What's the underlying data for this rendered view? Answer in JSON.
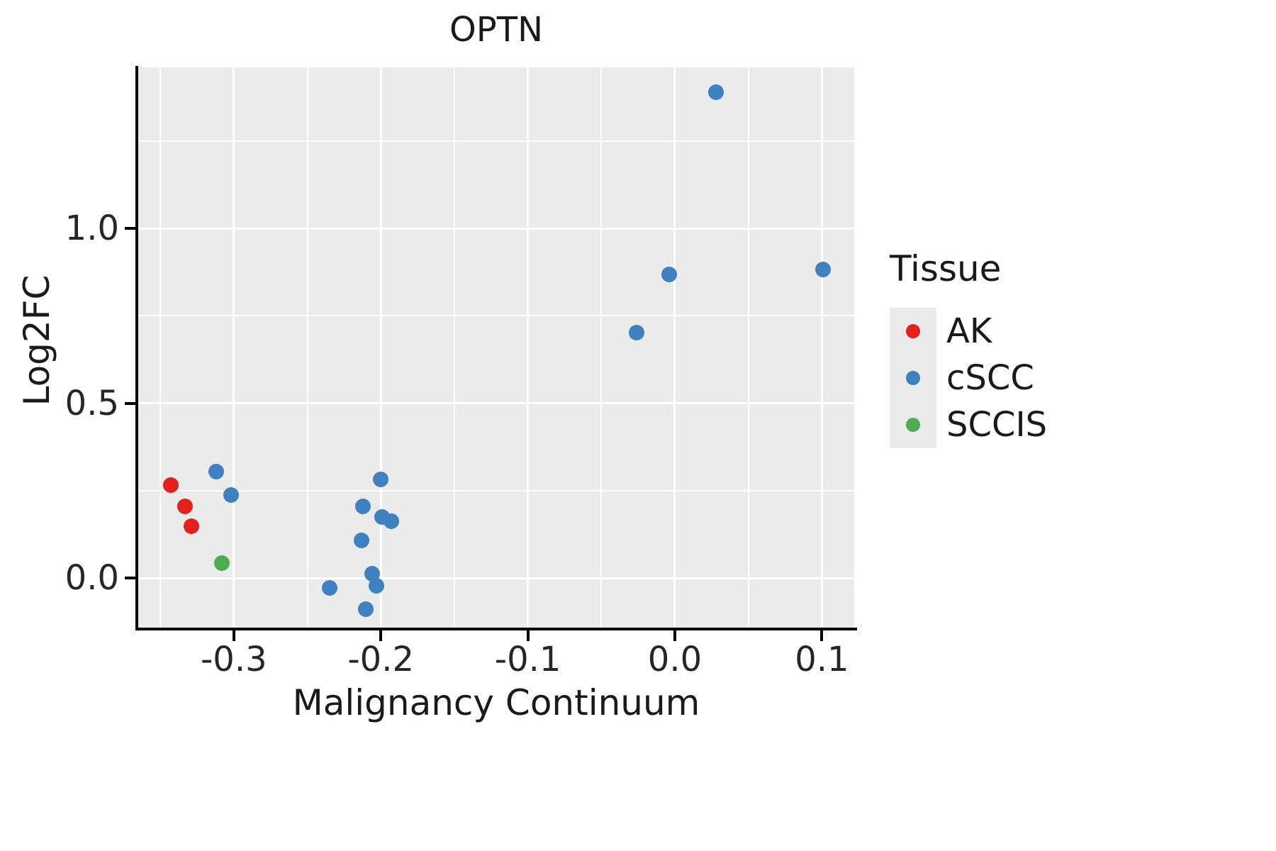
{
  "chart_data": {
    "type": "scatter",
    "title": "OPTN",
    "xlabel": "Malignancy Continuum",
    "ylabel": "Log2FC",
    "xlim": [
      -0.365,
      0.122
    ],
    "ylim": [
      -0.142,
      1.461
    ],
    "grid": true,
    "panel_background": "#EBEBEB",
    "grid_color": "#FFFFFF",
    "x_major_ticks": [
      {
        "value": -0.3,
        "label": "-0.3"
      },
      {
        "value": -0.2,
        "label": "-0.2"
      },
      {
        "value": -0.1,
        "label": "-0.1"
      },
      {
        "value": 0.0,
        "label": "0.0"
      },
      {
        "value": 0.1,
        "label": "0.1"
      }
    ],
    "x_minor_ticks": [
      -0.35,
      -0.25,
      -0.15,
      -0.05,
      0.05
    ],
    "y_major_ticks": [
      {
        "value": 0.0,
        "label": "0.0"
      },
      {
        "value": 0.5,
        "label": "0.5"
      },
      {
        "value": 1.0,
        "label": "1.0"
      }
    ],
    "y_minor_ticks": [
      0.25,
      0.75,
      1.25
    ],
    "legend": {
      "title": "Tissue",
      "position": "right"
    },
    "series": [
      {
        "name": "AK",
        "color": "#E3211C",
        "points": [
          [
            -0.343,
            0.265
          ],
          [
            -0.333,
            0.205
          ],
          [
            -0.329,
            0.148
          ]
        ]
      },
      {
        "name": "cSCC",
        "color": "#3E80C0",
        "points": [
          [
            -0.312,
            0.305
          ],
          [
            -0.302,
            0.238
          ],
          [
            -0.235,
            -0.028
          ],
          [
            -0.213,
            0.108
          ],
          [
            -0.212,
            0.205
          ],
          [
            -0.21,
            -0.09
          ],
          [
            -0.206,
            0.012
          ],
          [
            -0.203,
            -0.022
          ],
          [
            -0.2,
            0.282
          ],
          [
            -0.199,
            0.175
          ],
          [
            -0.193,
            0.162
          ],
          [
            -0.026,
            0.703
          ],
          [
            -0.004,
            0.868
          ],
          [
            0.028,
            1.39
          ],
          [
            0.101,
            0.882
          ]
        ]
      },
      {
        "name": "SCCIS",
        "color": "#4CAE4E",
        "points": [
          [
            -0.308,
            0.042
          ]
        ]
      }
    ],
    "legend_key_background": "#EBEBEB"
  }
}
